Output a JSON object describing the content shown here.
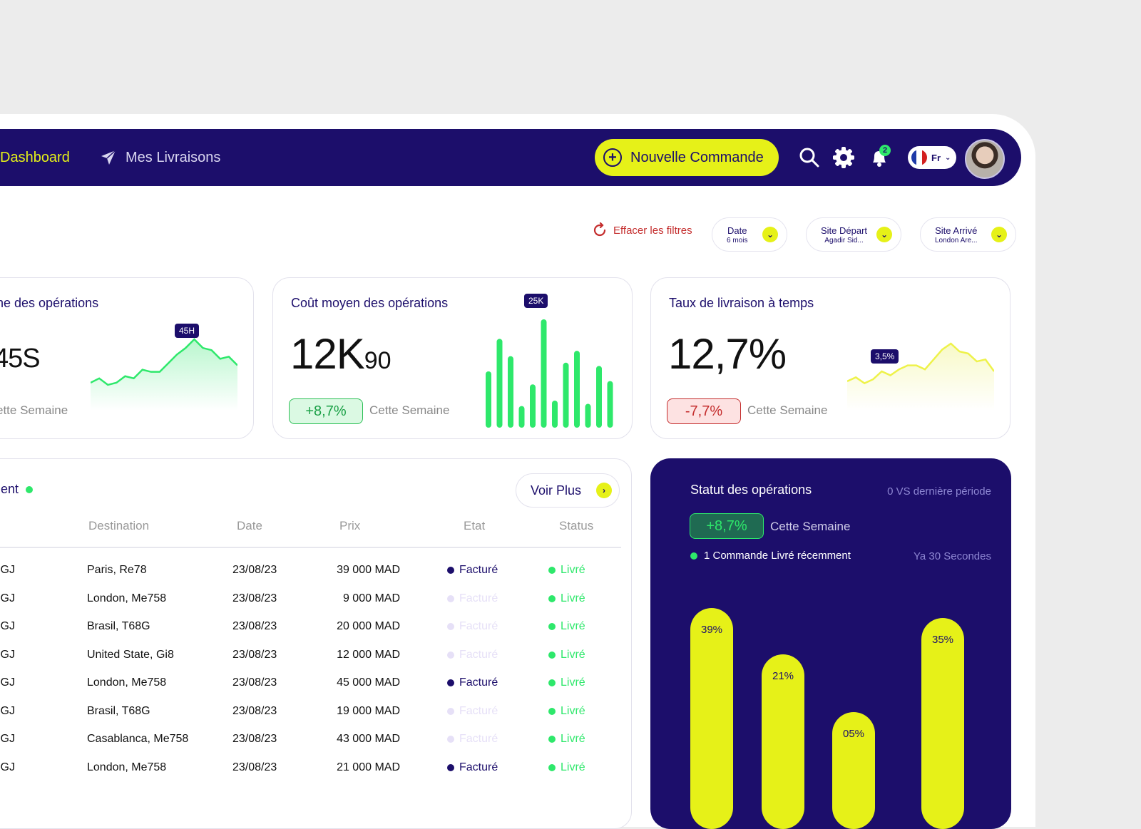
{
  "nav": {
    "dashboard_label": "Dashboard",
    "livraisons_label": "Mes Livraisons",
    "new_order_label": "Nouvelle Commande",
    "notifications_count": "2",
    "language": "Fr"
  },
  "filters": {
    "clear_label": "Effacer les filtres",
    "date": {
      "title": "Date",
      "value": "6 mois"
    },
    "site_depart": {
      "title": "Site Départ",
      "value": "Agadir Sid..."
    },
    "site_arrive": {
      "title": "Site Arrivé",
      "value": "London Are..."
    }
  },
  "kpis": {
    "duree": {
      "title": "ne des opérations",
      "value": "45S",
      "subtitle": "ette Semaine",
      "peak_tag": "45H",
      "series": [
        3,
        5,
        2,
        3,
        6,
        5,
        9,
        8,
        8,
        12,
        16,
        19,
        23,
        19,
        18,
        14,
        15,
        11
      ]
    },
    "cout": {
      "title": "Coût moyen des opérations",
      "value_main": "12K",
      "value_small": "90",
      "delta": "+8,7%",
      "subtitle": "Cette Semaine",
      "peak_tag": "25K",
      "bars": [
        52,
        82,
        66,
        20,
        40,
        100,
        25,
        60,
        71,
        22,
        57,
        43
      ]
    },
    "taux": {
      "title": "Taux de livraison à temps",
      "value": "12,7%",
      "delta": "-7,7%",
      "subtitle": "Cette Semaine",
      "point_tag": "3,5%",
      "series": [
        4,
        6,
        3,
        5,
        9,
        7,
        10,
        12,
        12,
        10,
        15,
        20,
        23,
        19,
        18,
        14,
        15,
        9
      ]
    }
  },
  "table": {
    "title": "ent",
    "voir_plus": "Voir Plus",
    "headers": [
      "Destination",
      "Date",
      "Prix",
      "Etat",
      "Status"
    ],
    "rows": [
      {
        "id": "BBBHGJ",
        "destination": "Paris, Re78",
        "date": "23/08/23",
        "prix": "39 000 MAD",
        "etat": "Facturé",
        "etat_active": true,
        "status": "Livré"
      },
      {
        "id": "BBBHGJ",
        "destination": "London, Me758",
        "date": "23/08/23",
        "prix": "9 000 MAD",
        "etat": "Facturé",
        "etat_active": false,
        "status": "Livré"
      },
      {
        "id": "BBBHGJ",
        "destination": "Brasil, T68G",
        "date": "23/08/23",
        "prix": "20 000 MAD",
        "etat": "Facturé",
        "etat_active": false,
        "status": "Livré"
      },
      {
        "id": "BBBHGJ",
        "destination": "United State, Gi8",
        "date": "23/08/23",
        "prix": "12 000 MAD",
        "etat": "Facturé",
        "etat_active": false,
        "status": "Livré"
      },
      {
        "id": "BBBHGJ",
        "destination": "London, Me758",
        "date": "23/08/23",
        "prix": "45 000 MAD",
        "etat": "Facturé",
        "etat_active": true,
        "status": "Livré"
      },
      {
        "id": "BBBHGJ",
        "destination": "Brasil, T68G",
        "date": "23/08/23",
        "prix": "19 000 MAD",
        "etat": "Facturé",
        "etat_active": false,
        "status": "Livré"
      },
      {
        "id": "BBBHGJ",
        "destination": "Casablanca, Me758",
        "date": "23/08/23",
        "prix": "43 000 MAD",
        "etat": "Facturé",
        "etat_active": false,
        "status": "Livré"
      },
      {
        "id": "BBBHGJ",
        "destination": "London, Me758",
        "date": "23/08/23",
        "prix": "21 000 MAD",
        "etat": "Facturé",
        "etat_active": true,
        "status": "Livré"
      }
    ]
  },
  "status_panel": {
    "title": "Statut des opérations",
    "comparison": "0 VS dernière période",
    "delta": "+8,7%",
    "subtitle": "Cette Semaine",
    "recent": "1 Commande Livré récemment",
    "recent_time": "Ya 30 Secondes",
    "capsules": [
      {
        "label": "39%",
        "value": 39
      },
      {
        "label": "21%",
        "value": 21
      },
      {
        "label": "05%",
        "value": 5
      },
      {
        "label": "35%",
        "value": 35
      }
    ]
  },
  "colors": {
    "navy": "#1c0e6b",
    "lime": "#e6f118",
    "green": "#2ee86b",
    "red": "#c42d2d"
  }
}
